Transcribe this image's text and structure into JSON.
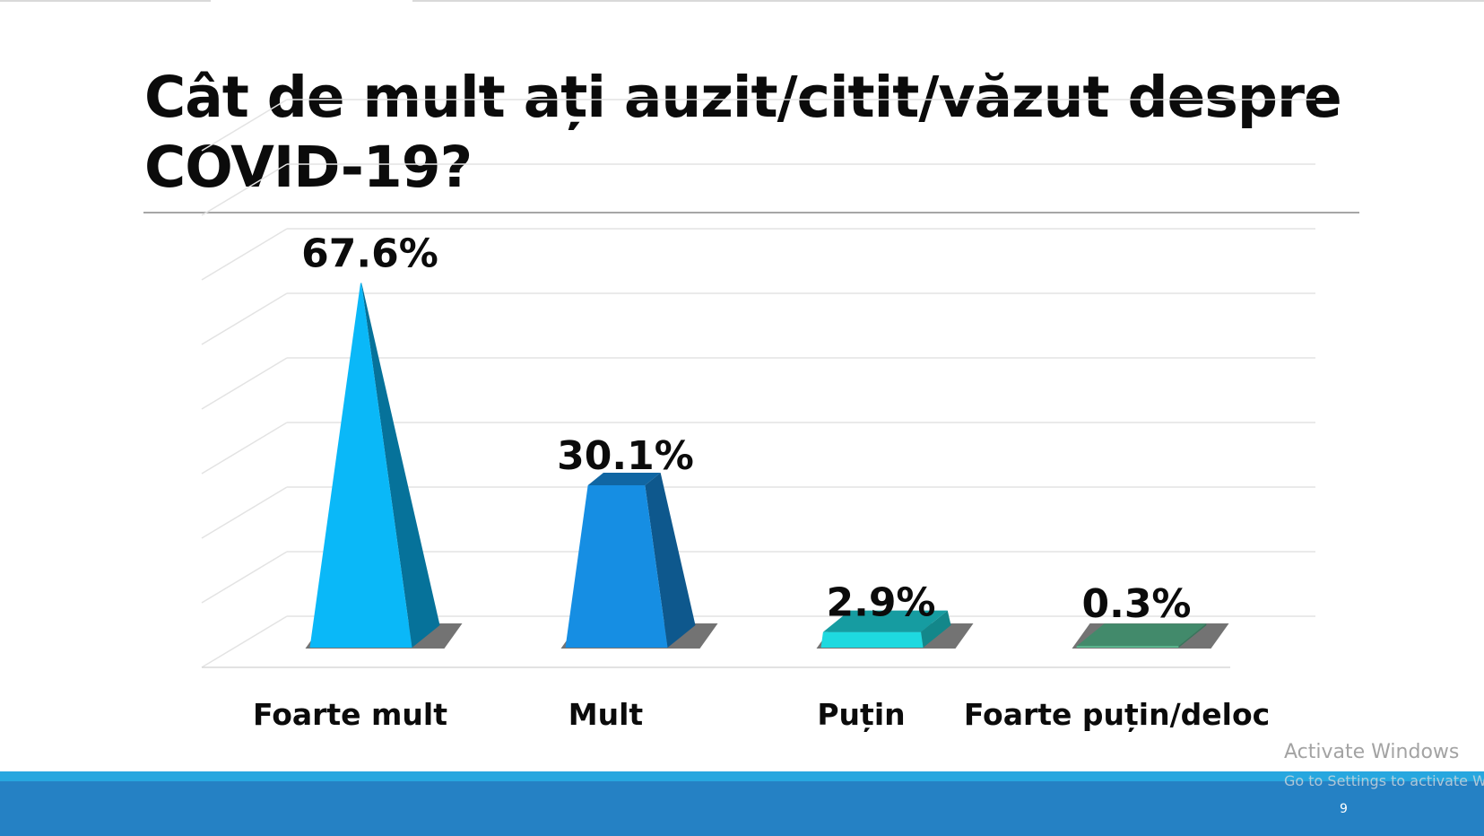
{
  "slide": {
    "title": "Cât de mult ați auzit/citit/văzut despre COVID-19?",
    "page_number": "9"
  },
  "watermark": {
    "line1": "Activate Windows",
    "line2": "Go to Settings to activate Windows."
  },
  "colors": {
    "footer": "#2581c4",
    "footer_accent": "#27a7df"
  },
  "chart_data": {
    "type": "bar",
    "shape": "pyramid-3d",
    "categories": [
      "Foarte mult",
      "Mult",
      "Puțin",
      "Foarte puțin/deloc"
    ],
    "values": [
      67.6,
      30.1,
      2.9,
      0.3
    ],
    "value_labels": [
      "67.6%",
      "30.1%",
      "2.9%",
      "0.3%"
    ],
    "colors": [
      "#0ab8f8",
      "#168ee3",
      "#1ed9df",
      "#5bbf94"
    ],
    "ylim": [
      0,
      80
    ],
    "grid": true
  }
}
